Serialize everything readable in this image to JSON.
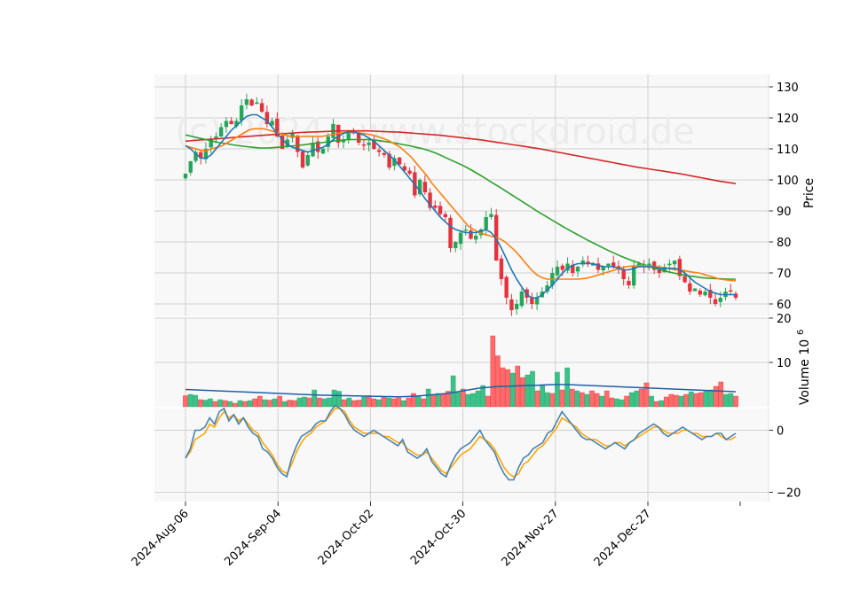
{
  "chart_data": {
    "type": "candlestick",
    "watermark": "(c) 2024 - www.stockdroid.de",
    "colors": {
      "up": "#26a65b",
      "down": "#e6323c",
      "up_fill": "#3ac28a",
      "down_fill": "#ff6b6b",
      "ma_short": "#1f77b4",
      "ma_mid": "#ff7f0e",
      "ma_long": "#2ca02c",
      "ma_200": "#d62728",
      "vol_avg": "#1f5fa8",
      "osc_fast": "#4682b4",
      "osc_slow": "#ffa500",
      "panel_bg": "#f8f8f8",
      "grid": "#d0d0d0"
    },
    "x_tick_labels": [
      "2024-Aug-06",
      "2024-Sep-04",
      "2024-Oct-02",
      "2024-Oct-30",
      "2024-Nov-27",
      "2024-Dec-27"
    ],
    "x_tick_index": [
      0,
      20,
      40,
      60,
      80,
      100
    ],
    "n_bars": 120,
    "price_panel": {
      "ylabel": "Price",
      "ylim": [
        56,
        134
      ],
      "yticks": [
        60,
        70,
        80,
        90,
        100,
        110,
        120,
        130
      ],
      "close": [
        102,
        106,
        109,
        107,
        110,
        113,
        114,
        117,
        119,
        118,
        119,
        124,
        126,
        124,
        125,
        122,
        118,
        119,
        114,
        110,
        113,
        115,
        109,
        104,
        108,
        112,
        109,
        110,
        114,
        118,
        112,
        113,
        116,
        115,
        112,
        111,
        112,
        110,
        109,
        108,
        104,
        107,
        105,
        103,
        102,
        95,
        100,
        96,
        91,
        91,
        89,
        88,
        78,
        80,
        83,
        84,
        81,
        82,
        84,
        88,
        89,
        74,
        68,
        62,
        58,
        60,
        64,
        62,
        60,
        62,
        64,
        66,
        70,
        72,
        71,
        73,
        70,
        72,
        74,
        73,
        73,
        71,
        72,
        73,
        72,
        71,
        68,
        66,
        72,
        73,
        72,
        73,
        71,
        70,
        72,
        73,
        74,
        69,
        67,
        64,
        65,
        63,
        64,
        62,
        60,
        62,
        64,
        64,
        62
      ],
      "ma_short": [
        111,
        110,
        108.5,
        107,
        107,
        108,
        110,
        112,
        114,
        116,
        117.5,
        119,
        120.5,
        121,
        121,
        120,
        119,
        117,
        115,
        113,
        111.5,
        110.5,
        110,
        109.5,
        109,
        109.5,
        110,
        110.5,
        111.5,
        113,
        114,
        115,
        115.5,
        115.5,
        115,
        114.5,
        113.5,
        112.5,
        111,
        109.5,
        108,
        106.5,
        104.5,
        102.5,
        100.5,
        98.5,
        96.5,
        94,
        92,
        90,
        88,
        86.5,
        85,
        84,
        83.5,
        83,
        83,
        83,
        83.5,
        84,
        83,
        81,
        78,
        74.5,
        71,
        68,
        65.5,
        63,
        62,
        62,
        63,
        64.5,
        66,
        68,
        70,
        71.5,
        72.5,
        73,
        73,
        73,
        73,
        72.5,
        72,
        72,
        72,
        71.5,
        71,
        71,
        71.5,
        72,
        72,
        72,
        72,
        71.5,
        71.5,
        71.5,
        71.5,
        71,
        70,
        68.5,
        67,
        66,
        65,
        64,
        63.5,
        63,
        63,
        63,
        63
      ],
      "ma_mid": [
        111,
        110.5,
        110,
        109.5,
        109.5,
        110,
        110.5,
        111,
        112,
        113,
        114,
        115,
        116,
        116.5,
        116.5,
        116.5,
        116,
        115.5,
        115,
        114.5,
        114,
        114,
        114,
        114,
        114,
        114,
        114,
        114.3,
        114.6,
        115,
        115.2,
        115.3,
        115.3,
        115.2,
        115,
        114.7,
        114.3,
        113.8,
        113.2,
        112.5,
        111.5,
        110.5,
        109,
        107.5,
        105.5,
        103.5,
        101.5,
        99,
        97,
        95,
        93,
        91,
        89,
        87,
        85,
        84,
        83,
        82.5,
        82,
        81.5,
        81,
        80,
        78.5,
        77,
        75,
        73,
        71,
        69.5,
        68.5,
        68,
        68,
        68,
        68,
        68,
        68,
        68,
        68.2,
        68.5,
        69,
        69.5,
        70,
        70.5,
        71,
        71.5,
        72,
        72.2,
        72.3,
        72.3,
        72.3,
        72.2,
        72,
        71.8,
        71.5,
        71.2,
        71,
        70.8,
        70.5,
        70.2,
        70,
        69.5,
        69,
        68.5,
        68,
        67.8,
        67.6,
        67.5
      ],
      "ma_long": [
        114.5,
        114,
        113.5,
        113,
        112.5,
        112,
        111.7,
        111.3,
        111,
        110.7,
        110.5,
        110.3,
        110.3,
        110.4,
        110.6,
        110.8,
        111,
        111.2,
        111.5,
        111.8,
        112,
        112.3,
        112.6,
        112.8,
        113,
        113,
        113,
        113,
        112.8,
        112.5,
        112.2,
        111.8,
        111.4,
        111,
        110.5,
        110,
        109.3,
        108.5,
        107.5,
        106.5,
        105.5,
        104.5,
        103.3,
        102,
        100.7,
        99.3,
        98,
        96.6,
        95.2,
        93.8,
        92.4,
        91,
        89.6,
        88.3,
        87,
        85.7,
        84.4,
        83.2,
        82,
        80.8,
        79.7,
        78.6,
        77.5,
        76.5,
        75.5,
        74.6,
        73.8,
        73,
        72.3,
        71.6,
        71,
        70.4,
        69.9,
        69.5,
        69.1,
        68.8,
        68.5,
        68.3,
        68.2,
        68.1,
        68,
        68
      ],
      "ma_200": [
        112.5,
        112.7,
        112.9,
        113.1,
        113.3,
        113.5,
        113.7,
        113.9,
        114.1,
        114.3,
        114.5,
        114.7,
        114.9,
        115.1,
        115.3,
        115.4,
        115.5,
        115.6,
        115.7,
        115.8,
        115.8,
        115.8,
        115.8,
        115.7,
        115.6,
        115.5,
        115.4,
        115.2,
        115,
        114.8,
        114.6,
        114.4,
        114.1,
        113.8,
        113.5,
        113.2,
        112.9,
        112.5,
        112.1,
        111.7,
        111.3,
        110.9,
        110.5,
        110.1,
        109.6,
        109.1,
        108.6,
        108.1,
        107.6,
        107.1,
        106.6,
        106.1,
        105.6,
        105.1,
        104.6,
        104.1,
        103.7,
        103.3,
        102.9,
        102.5,
        102.1,
        101.6,
        101.1,
        100.6,
        100.1,
        99.6,
        99.2,
        98.8
      ]
    },
    "volume_panel": {
      "ylabel": "Volume  10",
      "ylabel_exponent": "6",
      "ylim": [
        0,
        20
      ],
      "yticks": [
        10,
        20
      ],
      "values": [
        2.5,
        2.8,
        2.6,
        1.6,
        1.5,
        1.8,
        1.2,
        1.6,
        1.4,
        1.2,
        0.8,
        1.4,
        1.2,
        1.4,
        1.8,
        2.4,
        1.6,
        1.5,
        1.8,
        2.4,
        1.2,
        1.5,
        1.4,
        2.0,
        2.2,
        2.0,
        3.8,
        2.0,
        1.8,
        2.0,
        3.8,
        3.5,
        1.6,
        2.0,
        1.4,
        1.5,
        2.2,
        2.5,
        1.8,
        1.6,
        2.2,
        2.0,
        1.8,
        2.0,
        1.4,
        2.0,
        3.0,
        2.4,
        1.8,
        4.0,
        2.6,
        3.0,
        2.8,
        3.5,
        7.0,
        3.2,
        4.0,
        2.8,
        3.0,
        3.6,
        4.8,
        2.4,
        16.0,
        11.5,
        8.8,
        8.4,
        7.6,
        9.2,
        6.6,
        7.2,
        8.0,
        3.6,
        4.8,
        3.2,
        3.0,
        7.8,
        3.8,
        8.8,
        4.0,
        3.6,
        3.2,
        2.8,
        3.6,
        3.0,
        2.4,
        3.6,
        2.0,
        1.8,
        1.6,
        2.4,
        3.2,
        3.6,
        4.0,
        5.4,
        2.4,
        1.2,
        1.4,
        2.2,
        2.8,
        2.6,
        2.4,
        2.8,
        3.4,
        3.0,
        3.2,
        3.6,
        3.8,
        4.6,
        5.6,
        2.8,
        3.0,
        2.4
      ],
      "volume_up": [
        false,
        true,
        true,
        false,
        true,
        true,
        false,
        true,
        false,
        true,
        false,
        true,
        false,
        true,
        false,
        false,
        true,
        false,
        true,
        false,
        true,
        false,
        false,
        true,
        true,
        false,
        true,
        false,
        true,
        true,
        true,
        true,
        false,
        true,
        false,
        false,
        true,
        false,
        false,
        true,
        false,
        true,
        false,
        false,
        true,
        false,
        false,
        true,
        false,
        true,
        false,
        true,
        false,
        false,
        true,
        true,
        false,
        true,
        true,
        true,
        true,
        false,
        false,
        false,
        false,
        false,
        true,
        false,
        false,
        true,
        true,
        false,
        true,
        true,
        false,
        true,
        false,
        true,
        false,
        true,
        false,
        true,
        false,
        false,
        true,
        false,
        false,
        true,
        true,
        false,
        true,
        true,
        false,
        false,
        true,
        false,
        true,
        false,
        false,
        false,
        true,
        false,
        true,
        false,
        false,
        true,
        true,
        false,
        false,
        true,
        true,
        false
      ],
      "volume_avg": [
        3.9,
        3.85,
        3.8,
        3.75,
        3.7,
        3.65,
        3.6,
        3.55,
        3.5,
        3.45,
        3.4,
        3.35,
        3.3,
        3.25,
        3.2,
        3.15,
        3.1,
        3.05,
        3.0,
        2.95,
        2.9,
        2.85,
        2.8,
        2.75,
        2.7,
        2.65,
        2.6,
        2.6,
        2.55,
        2.55,
        2.5,
        2.5,
        2.45,
        2.45,
        2.4,
        2.4,
        2.35,
        2.35,
        2.3,
        2.3,
        2.25,
        2.25,
        2.3,
        2.35,
        2.4,
        2.5,
        2.6,
        2.7,
        2.8,
        2.9,
        3.0,
        3.2,
        3.4,
        3.6,
        3.8,
        4.0,
        4.2,
        4.3,
        4.4,
        4.5,
        4.6,
        4.6,
        4.65,
        4.7,
        4.75,
        4.8,
        4.8,
        4.85,
        4.9,
        4.95,
        5.0,
        5.0,
        5.0,
        5.0,
        4.95,
        4.9,
        4.85,
        4.8,
        4.75,
        4.7,
        4.65,
        4.6,
        4.55,
        4.5,
        4.45,
        4.4,
        4.35,
        4.3,
        4.25,
        4.2,
        4.15,
        4.1,
        4.05,
        4.0,
        3.95,
        3.9,
        3.85,
        3.8,
        3.75,
        3.7,
        3.65,
        3.6,
        3.55,
        3.5,
        3.45,
        3.4
      ]
    },
    "oscillator_panel": {
      "ylim": [
        -23,
        7
      ],
      "yticks": [
        0,
        -20
      ],
      "ytick_labels": [
        "0",
        "−20"
      ],
      "fast": [
        -9,
        -6,
        0,
        0,
        1,
        4,
        2,
        6,
        7,
        3,
        5,
        2,
        4,
        1,
        -1,
        -2,
        -6,
        -7,
        -9,
        -12,
        -14,
        -15,
        -9,
        -5,
        -2,
        -1,
        0,
        2,
        3,
        3,
        6,
        8,
        7,
        5,
        2,
        0,
        -1,
        -2,
        -1,
        0,
        -1,
        -2,
        -3,
        -4,
        -5,
        -3,
        -7,
        -8,
        -9,
        -8,
        -6,
        -10,
        -12,
        -14,
        -15,
        -11,
        -8,
        -6,
        -5,
        -4,
        -2,
        0,
        -3,
        -5,
        -7,
        -11,
        -14,
        -16,
        -16,
        -12,
        -9,
        -8,
        -6,
        -5,
        -4,
        -1,
        0,
        3,
        6,
        4,
        2,
        0,
        -2,
        -3,
        -3,
        -4,
        -5,
        -6,
        -5,
        -4,
        -5,
        -6,
        -4,
        -3,
        -1,
        0,
        1,
        2,
        1,
        -1,
        -2,
        -1,
        0,
        1,
        0,
        -1,
        -2,
        -3,
        -2,
        -2,
        -1,
        -1,
        -3,
        -2,
        -1
      ],
      "slow": [
        -9,
        -7,
        -3,
        -2,
        -1,
        2,
        1,
        4,
        6,
        4,
        5,
        3,
        4,
        2,
        0,
        -1,
        -4,
        -6,
        -8,
        -11,
        -13,
        -14,
        -11,
        -7,
        -4,
        -2,
        -1,
        1,
        2,
        3,
        5,
        7,
        7,
        6,
        3,
        1,
        0,
        -1,
        -1,
        -1,
        -1,
        -2,
        -2,
        -3,
        -4,
        -4,
        -6,
        -7,
        -8,
        -8,
        -7,
        -9,
        -11,
        -13,
        -14,
        -12,
        -10,
        -8,
        -7,
        -6,
        -4,
        -2,
        -3,
        -4,
        -6,
        -9,
        -12,
        -14,
        -15,
        -14,
        -11,
        -10,
        -8,
        -6,
        -5,
        -3,
        -1,
        1,
        4,
        3,
        2,
        1,
        -1,
        -2,
        -3,
        -3,
        -4,
        -5,
        -5,
        -4,
        -4,
        -5,
        -4,
        -3,
        -2,
        -1,
        0,
        1,
        1,
        0,
        -1,
        -1,
        -1,
        0,
        0,
        -1,
        -1,
        -2,
        -2,
        -2,
        -1,
        -2,
        -3,
        -3,
        -2
      ]
    }
  }
}
